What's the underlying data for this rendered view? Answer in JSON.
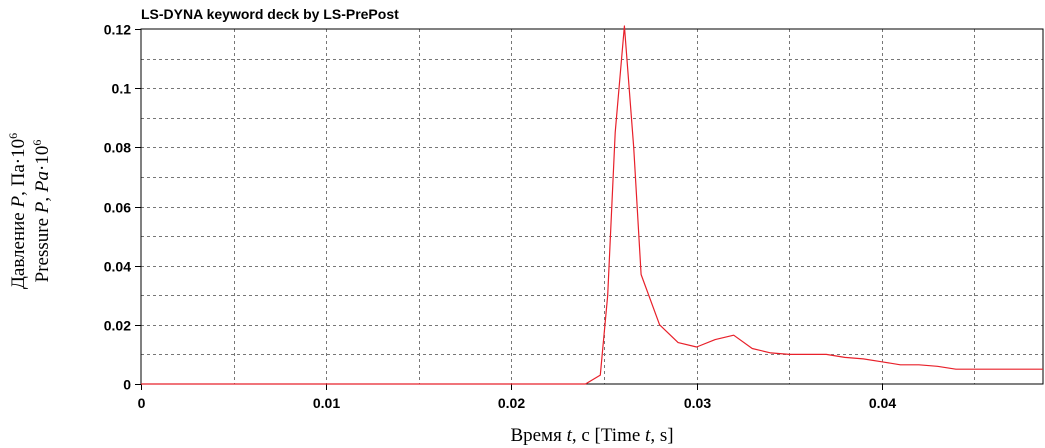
{
  "chart_data": {
    "type": "line",
    "title": "LS-DYNA keyword deck by LS-PrePost",
    "xlabel": {
      "prefix": "Время ",
      "var1": "t",
      "mid": ", с [Time ",
      "var2": "t",
      "suffix": ", s]"
    },
    "ylabel_line1": {
      "prefix": "Давление ",
      "var": "P",
      "mid": ", Па·10",
      "exp": "6"
    },
    "ylabel_line2": {
      "prefix": "Pressure ",
      "var": "P",
      "sep": ", ",
      "unit": "Pa",
      "mid": "·10",
      "exp": "6"
    },
    "xlim": [
      0,
      0.0487
    ],
    "ylim": [
      0,
      0.12
    ],
    "xticks": [
      {
        "value": 0,
        "label": "0"
      },
      {
        "value": 0.01,
        "label": "0.01"
      },
      {
        "value": 0.02,
        "label": "0.02"
      },
      {
        "value": 0.03,
        "label": "0.03"
      },
      {
        "value": 0.04,
        "label": "0.04"
      }
    ],
    "yticks": [
      {
        "value": 0,
        "label": "0"
      },
      {
        "value": 0.02,
        "label": "0.02"
      },
      {
        "value": 0.04,
        "label": "0.04"
      },
      {
        "value": 0.06,
        "label": "0.06"
      },
      {
        "value": 0.08,
        "label": "0.08"
      },
      {
        "value": 0.1,
        "label": "0.1"
      },
      {
        "value": 0.12,
        "label": "0.12"
      }
    ],
    "x_grid_minor": [
      0.005,
      0.015,
      0.025,
      0.035,
      0.045
    ],
    "y_grid_minor": [
      0.01,
      0.03,
      0.05,
      0.07,
      0.09,
      0.11
    ],
    "grid": true,
    "series": [
      {
        "color": "#e8202a",
        "x": [
          0,
          0.001,
          0.002,
          0.003,
          0.004,
          0.005,
          0.006,
          0.007,
          0.008,
          0.009,
          0.01,
          0.011,
          0.012,
          0.013,
          0.014,
          0.015,
          0.016,
          0.017,
          0.018,
          0.019,
          0.02,
          0.021,
          0.022,
          0.023,
          0.024,
          0.0248,
          0.0252,
          0.0256,
          0.0261,
          0.0266,
          0.027,
          0.028,
          0.029,
          0.03,
          0.031,
          0.032,
          0.033,
          0.034,
          0.035,
          0.036,
          0.037,
          0.038,
          0.039,
          0.04,
          0.041,
          0.042,
          0.043,
          0.044,
          0.045,
          0.046,
          0.047,
          0.048,
          0.0487
        ],
        "y": [
          0,
          0,
          0,
          0,
          0,
          0,
          0,
          0,
          0,
          0,
          0,
          0,
          0,
          0,
          0,
          0,
          0,
          0,
          0,
          0,
          0,
          0,
          0,
          0,
          0,
          0.003,
          0.03,
          0.085,
          0.121,
          0.08,
          0.037,
          0.02,
          0.014,
          0.0125,
          0.015,
          0.0165,
          0.012,
          0.0105,
          0.01,
          0.01,
          0.01,
          0.009,
          0.0085,
          0.0075,
          0.0065,
          0.0065,
          0.006,
          0.005,
          0.005,
          0.005,
          0.005,
          0.005,
          0.005
        ]
      }
    ]
  }
}
